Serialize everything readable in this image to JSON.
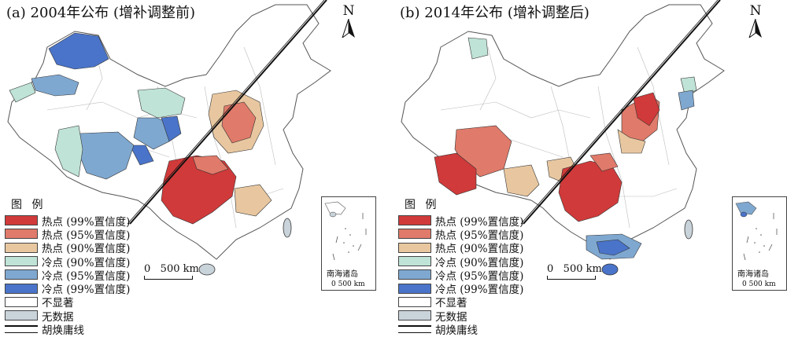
{
  "panels": [
    {
      "title": "(a) 2004年公布 (增补调整前)",
      "north_label": "N",
      "scale_label": "0   500 km",
      "inset_label": "南海诸岛",
      "inset_scale": "0  500 km",
      "legend_title": "图 例"
    },
    {
      "title": "(b) 2014年公布 (增补调整后)",
      "north_label": "N",
      "scale_label": "0   500 km",
      "inset_label": "南海诸岛",
      "inset_scale": "0  500 km",
      "legend_title": "图 例"
    }
  ],
  "legend": [
    {
      "label": "热点 (99%置信度)",
      "color": "#d03a3a"
    },
    {
      "label": "热点 (95%置信度)",
      "color": "#e07a6a"
    },
    {
      "label": "热点 (90%置信度)",
      "color": "#e8c7a0"
    },
    {
      "label": "冷点 (90%置信度)",
      "color": "#bfe3d6"
    },
    {
      "label": "冷点 (95%置信度)",
      "color": "#7fa8d0"
    },
    {
      "label": "冷点 (99%置信度)",
      "color": "#4a74c9"
    },
    {
      "label": "不显著",
      "color": "#ffffff"
    },
    {
      "label": "无数据",
      "color": "#c9d3da"
    },
    {
      "label": "胡焕庸线",
      "color": "#111111"
    }
  ]
}
